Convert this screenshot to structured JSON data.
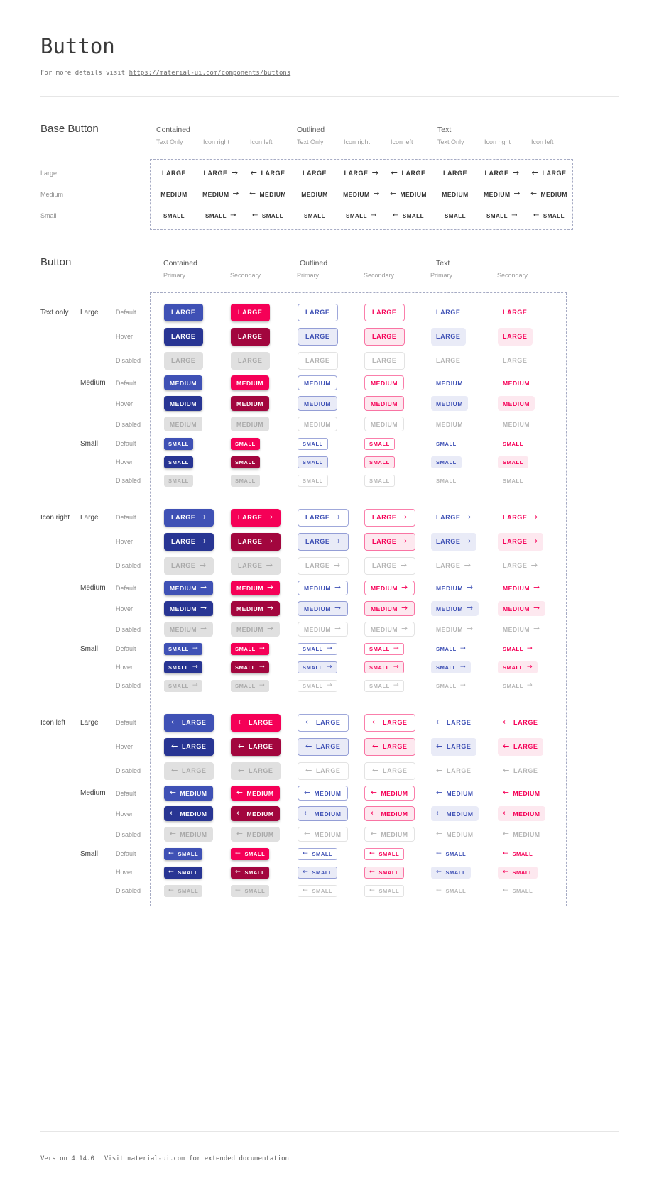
{
  "page": {
    "title": "Button",
    "subtitle_prefix": "For more details visit ",
    "subtitle_link": "https://material-ui.com/components/buttons",
    "footer_version": "Version 4.14.0",
    "footer_note": "Visit material-ui.com for extended documentation"
  },
  "colors": {
    "primary": "#3f51b5",
    "primary_hover": "#283593",
    "secondary": "#f50057",
    "secondary_hover": "#a2063e",
    "disabled_bg": "#e0e0e0",
    "disabled_text": "#a9a9a9",
    "outlined_primary_border": "rgba(63,81,181,0.5)",
    "outlined_secondary_border": "rgba(245,0,87,0.5)",
    "primary_tint": "#e9ebf7",
    "secondary_tint": "#fde8ef",
    "base_text": "#333333",
    "dash_border": "#a6abc4"
  },
  "icons": {
    "arrow_right": "→",
    "arrow_left": "←"
  },
  "base_section": {
    "title": "Base Button",
    "groups": [
      {
        "label": "Contained"
      },
      {
        "label": "Outlined"
      },
      {
        "label": "Text"
      }
    ],
    "subcolumns": [
      "Text Only",
      "Icon right",
      "Icon left"
    ],
    "sizes": [
      {
        "label": "Large",
        "button_text": "LARGE"
      },
      {
        "label": "Medium",
        "button_text": "MEDIUM"
      },
      {
        "label": "Small",
        "button_text": "SMALL"
      }
    ]
  },
  "button_section": {
    "title": "Button",
    "groups": [
      {
        "label": "Contained",
        "variant": "contained"
      },
      {
        "label": "Outlined",
        "variant": "outlined"
      },
      {
        "label": "Text",
        "variant": "text"
      }
    ],
    "subcolumns": [
      {
        "label": "Primary",
        "color": "primary"
      },
      {
        "label": "Secondary",
        "color": "secondary"
      }
    ],
    "icon_rows": [
      {
        "label": "Text only",
        "icon": "none"
      },
      {
        "label": "Icon right",
        "icon": "right"
      },
      {
        "label": "Icon left",
        "icon": "left"
      }
    ],
    "sizes": [
      {
        "label": "Large",
        "button_text": "LARGE"
      },
      {
        "label": "Medium",
        "button_text": "MEDIUM"
      },
      {
        "label": "Small",
        "button_text": "SMALL"
      }
    ],
    "states": [
      {
        "label": "Default",
        "state": "default"
      },
      {
        "label": "Hover",
        "state": "hover"
      },
      {
        "label": "Disabled",
        "state": "disabled"
      }
    ]
  }
}
